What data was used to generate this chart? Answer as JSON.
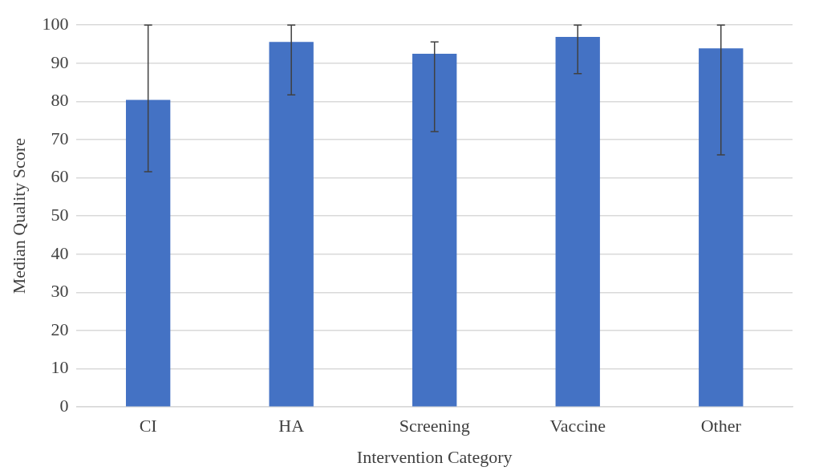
{
  "chart_data": {
    "type": "bar",
    "xlabel": "Intervention Category",
    "ylabel": "Median Quality Score",
    "categories": [
      "CI",
      "HA",
      "Screening",
      "Vaccine",
      "Other"
    ],
    "values": [
      80.4,
      95.6,
      92.5,
      96.9,
      93.9
    ],
    "errors": [
      [
        61.6,
        100
      ],
      [
        81.7,
        100
      ],
      [
        72.1,
        95.6
      ],
      [
        87.3,
        100
      ],
      [
        66,
        100
      ]
    ],
    "color": "#4472c4",
    "ylim": [
      0,
      100
    ],
    "yticks": [
      0,
      10,
      20,
      30,
      40,
      50,
      60,
      70,
      80,
      90,
      100
    ],
    "grid": "y",
    "legend": false
  }
}
